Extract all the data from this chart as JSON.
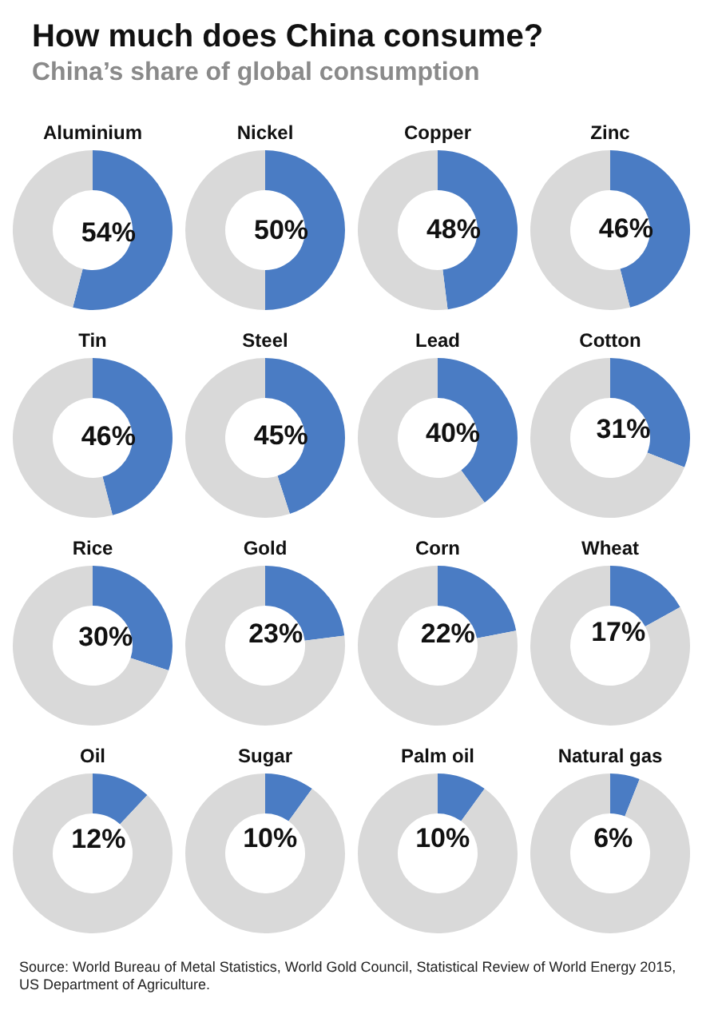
{
  "chart_data": [
    {
      "type": "other",
      "title": "How much does China consume?",
      "subtitle": "China’s share of global consumption"
    },
    {
      "type": "donut",
      "title": "Aluminium",
      "categories": [
        null,
        null
      ],
      "values": [
        54,
        46
      ],
      "colors": [
        "#4a7cc4",
        "#d9d9d9"
      ],
      "value_labels": [
        "54%",
        null
      ],
      "legend": false
    },
    {
      "type": "donut",
      "title": "Nickel",
      "categories": [
        null,
        null
      ],
      "values": [
        50,
        50
      ],
      "colors": [
        "#4a7cc4",
        "#d9d9d9"
      ],
      "value_labels": [
        "50%",
        null
      ],
      "legend": false
    },
    {
      "type": "donut",
      "title": "Copper",
      "categories": [
        null,
        null
      ],
      "values": [
        48,
        52
      ],
      "colors": [
        "#4a7cc4",
        "#d9d9d9"
      ],
      "value_labels": [
        "48%",
        null
      ],
      "legend": false
    },
    {
      "type": "donut",
      "title": "Zinc",
      "categories": [
        null,
        null
      ],
      "values": [
        46,
        54
      ],
      "colors": [
        "#4a7cc4",
        "#d9d9d9"
      ],
      "value_labels": [
        "46%",
        null
      ],
      "legend": false
    },
    {
      "type": "donut",
      "title": "Tin",
      "categories": [
        null,
        null
      ],
      "values": [
        46,
        54
      ],
      "colors": [
        "#4a7cc4",
        "#d9d9d9"
      ],
      "value_labels": [
        "46%",
        null
      ],
      "legend": false
    },
    {
      "type": "donut",
      "title": "Steel",
      "categories": [
        null,
        null
      ],
      "values": [
        45,
        55
      ],
      "colors": [
        "#4a7cc4",
        "#d9d9d9"
      ],
      "value_labels": [
        "45%",
        null
      ],
      "legend": false
    },
    {
      "type": "donut",
      "title": "Lead",
      "categories": [
        null,
        null
      ],
      "values": [
        40,
        60
      ],
      "colors": [
        "#4a7cc4",
        "#d9d9d9"
      ],
      "value_labels": [
        "40%",
        null
      ],
      "legend": false
    },
    {
      "type": "donut",
      "title": "Cotton",
      "categories": [
        null,
        null
      ],
      "values": [
        31,
        69
      ],
      "colors": [
        "#4a7cc4",
        "#d9d9d9"
      ],
      "value_labels": [
        "31%",
        null
      ],
      "legend": false
    },
    {
      "type": "donut",
      "title": "Rice",
      "categories": [
        null,
        null
      ],
      "values": [
        30,
        70
      ],
      "colors": [
        "#4a7cc4",
        "#d9d9d9"
      ],
      "value_labels": [
        "30%",
        null
      ],
      "legend": false
    },
    {
      "type": "donut",
      "title": "Gold",
      "categories": [
        null,
        null
      ],
      "values": [
        23,
        77
      ],
      "colors": [
        "#4a7cc4",
        "#d9d9d9"
      ],
      "value_labels": [
        "23%",
        null
      ],
      "legend": false
    },
    {
      "type": "donut",
      "title": "Corn",
      "categories": [
        null,
        null
      ],
      "values": [
        22,
        78
      ],
      "colors": [
        "#4a7cc4",
        "#d9d9d9"
      ],
      "value_labels": [
        "22%",
        null
      ],
      "legend": false
    },
    {
      "type": "donut",
      "title": "Wheat",
      "categories": [
        null,
        null
      ],
      "values": [
        17,
        83
      ],
      "colors": [
        "#4a7cc4",
        "#d9d9d9"
      ],
      "value_labels": [
        "17%",
        null
      ],
      "legend": false
    },
    {
      "type": "donut",
      "title": "Oil",
      "categories": [
        null,
        null
      ],
      "values": [
        12,
        88
      ],
      "colors": [
        "#4a7cc4",
        "#d9d9d9"
      ],
      "value_labels": [
        "12%",
        null
      ],
      "legend": false
    },
    {
      "type": "donut",
      "title": "Sugar",
      "categories": [
        null,
        null
      ],
      "values": [
        10,
        90
      ],
      "colors": [
        "#4a7cc4",
        "#d9d9d9"
      ],
      "value_labels": [
        "10%",
        null
      ],
      "legend": false
    },
    {
      "type": "donut",
      "title": "Palm oil",
      "categories": [
        null,
        null
      ],
      "values": [
        10,
        90
      ],
      "colors": [
        "#4a7cc4",
        "#d9d9d9"
      ],
      "value_labels": [
        "10%",
        null
      ],
      "legend": false
    },
    {
      "type": "donut",
      "title": "Natural gas",
      "categories": [
        null,
        null
      ],
      "values": [
        6,
        94
      ],
      "colors": [
        "#4a7cc4",
        "#d9d9d9"
      ],
      "value_labels": [
        "6%",
        null
      ],
      "legend": false
    },
    {
      "type": "other",
      "annotations": [
        "Source: World Bureau of Metal Statistics, World Gold Council, Statistical Review of World Energy 2015, US Department of Agriculture."
      ]
    }
  ]
}
